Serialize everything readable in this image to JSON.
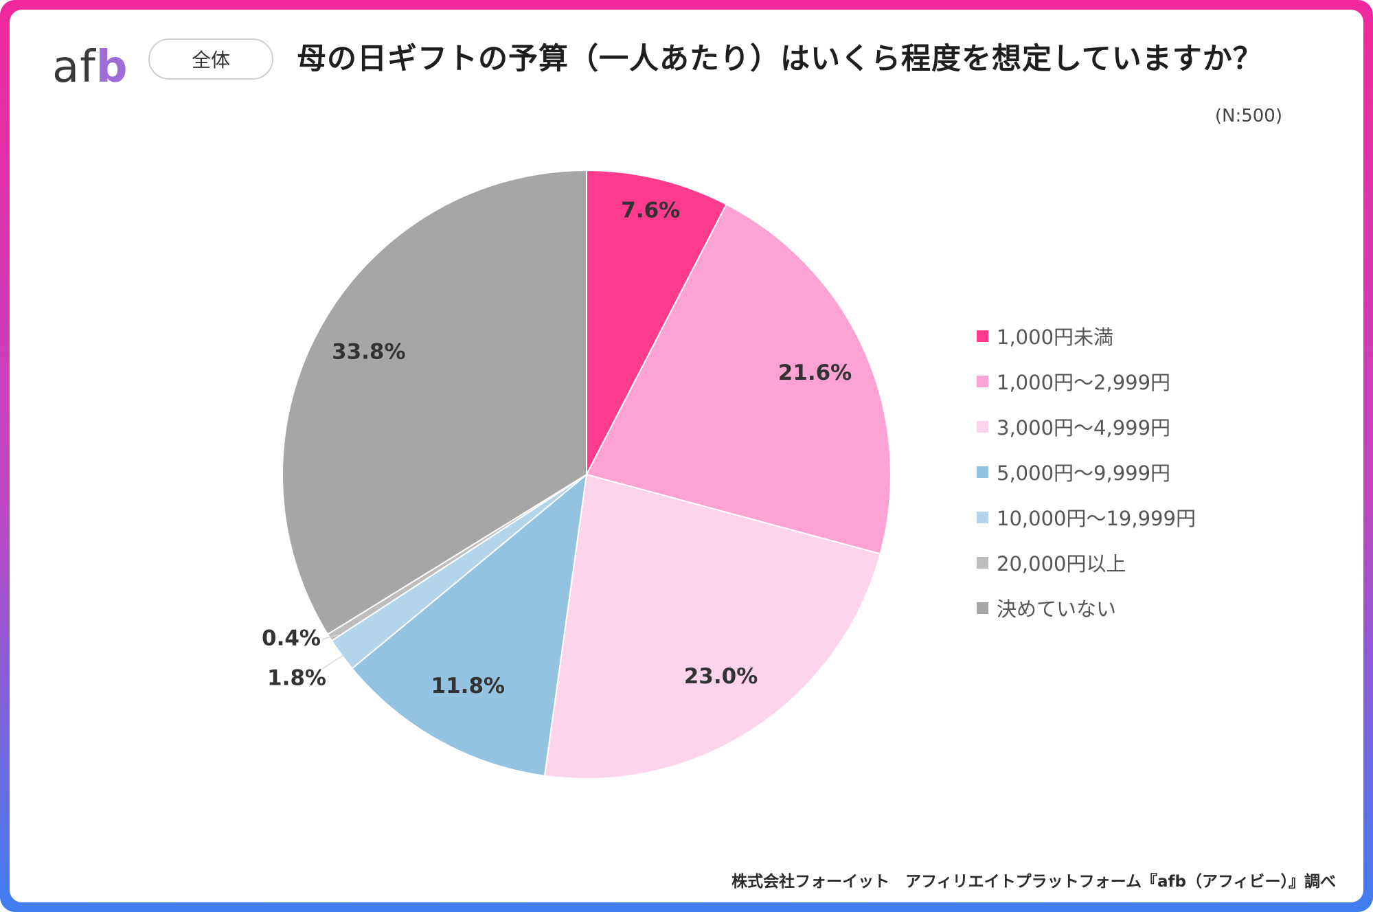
{
  "header": {
    "logo_part1": "af",
    "logo_part2": "b",
    "badge": "全体",
    "title": "母の日ギフトの予算（一人あたり）はいくら程度を想定していますか？",
    "sample_size": "(N:500)"
  },
  "chart_data": {
    "type": "pie",
    "title": "母の日ギフトの予算（一人あたり）はいくら程度を想定していますか？",
    "unit": "%",
    "start": "12 o'clock",
    "direction": "clockwise",
    "legend_position": "right",
    "slices": [
      {
        "label": "1,000円未満",
        "value": 7.6,
        "display": "7.6%",
        "color": "#ff3b8e"
      },
      {
        "label": "1,000円～2,999円",
        "value": 21.6,
        "display": "21.6%",
        "color": "#fda3d4"
      },
      {
        "label": "3,000円～4,999円",
        "value": 23.0,
        "display": "23.0%",
        "color": "#fdd4ec"
      },
      {
        "label": "5,000円～9,999円",
        "value": 11.8,
        "display": "11.8%",
        "color": "#93c3e0"
      },
      {
        "label": "10,000円～19,999円",
        "value": 1.8,
        "display": "1.8%",
        "color": "#b2d5ec"
      },
      {
        "label": "20,000円以上",
        "value": 0.4,
        "display": "0.4%",
        "color": "#bdbdbd"
      },
      {
        "label": "決めていない",
        "value": 33.8,
        "display": "33.8%",
        "color": "#a6a6a6"
      }
    ]
  },
  "footer": {
    "source": "株式会社フォーイット　アフィリエイトプラットフォーム『afb（アフィビー）』調べ"
  }
}
